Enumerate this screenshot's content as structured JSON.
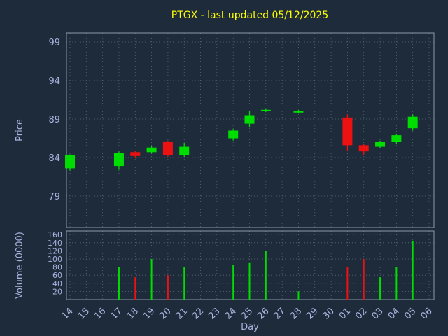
{
  "title": "PTGX - last updated 05/12/2025",
  "colors": {
    "background": "#1d2b3a",
    "title": "#ffff00",
    "axis_text": "#a9b4e0",
    "border": "#8a98aa",
    "grid": "#5a6878",
    "up": "#00dd00",
    "down": "#ee1111"
  },
  "chart_data": {
    "type": "candlestick_with_volume",
    "title": "PTGX - last updated 05/12/2025",
    "xlabel": "Day",
    "price_axis": {
      "label": "Price",
      "ticks": [
        99,
        94,
        89,
        84,
        79
      ],
      "range": [
        74.9,
        100.2
      ],
      "grid": true
    },
    "volume_axis": {
      "label": "Volume (0000)",
      "ticks": [
        160,
        140,
        120,
        100,
        80,
        60,
        40,
        20
      ],
      "range": [
        0,
        170
      ],
      "grid": true
    },
    "x_ticks": [
      "14",
      "15",
      "16",
      "17",
      "18",
      "19",
      "20",
      "21",
      "22",
      "23",
      "24",
      "25",
      "26",
      "27",
      "28",
      "29",
      "30",
      "01",
      "02",
      "03",
      "04",
      "05",
      "06"
    ],
    "candles": [
      {
        "day": "14",
        "open": 82.6,
        "high": 84.4,
        "low": 82.3,
        "close": 84.3,
        "volume": 0
      },
      {
        "day": "17",
        "open": 82.9,
        "high": 84.8,
        "low": 82.4,
        "close": 84.6,
        "volume": 80
      },
      {
        "day": "18",
        "open": 84.7,
        "high": 84.9,
        "low": 84.0,
        "close": 84.2,
        "volume": 55
      },
      {
        "day": "19",
        "open": 84.7,
        "high": 85.5,
        "low": 84.5,
        "close": 85.3,
        "volume": 100
      },
      {
        "day": "20",
        "open": 86.0,
        "high": 86.2,
        "low": 84.1,
        "close": 84.3,
        "volume": 60
      },
      {
        "day": "21",
        "open": 84.3,
        "high": 85.9,
        "low": 84.1,
        "close": 85.4,
        "volume": 80
      },
      {
        "day": "24",
        "open": 86.5,
        "high": 87.7,
        "low": 86.2,
        "close": 87.5,
        "volume": 85
      },
      {
        "day": "25",
        "open": 88.4,
        "high": 90.0,
        "low": 87.9,
        "close": 89.5,
        "volume": 90
      },
      {
        "day": "26",
        "open": 90.1,
        "high": 90.4,
        "low": 89.9,
        "close": 90.2,
        "volume": 120
      },
      {
        "day": "28",
        "open": 89.9,
        "high": 90.2,
        "low": 89.7,
        "close": 90.0,
        "volume": 20
      },
      {
        "day": "01",
        "open": 89.2,
        "high": 89.6,
        "low": 84.9,
        "close": 85.6,
        "volume": 80
      },
      {
        "day": "02",
        "open": 85.6,
        "high": 85.8,
        "low": 84.3,
        "close": 84.8,
        "volume": 100
      },
      {
        "day": "03",
        "open": 85.4,
        "high": 86.2,
        "low": 85.2,
        "close": 86.0,
        "volume": 55
      },
      {
        "day": "04",
        "open": 86.0,
        "high": 87.1,
        "low": 85.8,
        "close": 86.9,
        "volume": 80
      },
      {
        "day": "05",
        "open": 87.8,
        "high": 89.6,
        "low": 87.5,
        "close": 89.3,
        "volume": 145
      }
    ]
  }
}
